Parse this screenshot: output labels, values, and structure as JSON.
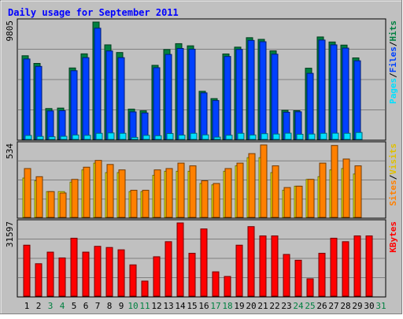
{
  "chart_data": {
    "type": "bar",
    "title": "Daily usage for September 2011",
    "categories": [
      "1",
      "2",
      "3",
      "4",
      "5",
      "6",
      "7",
      "8",
      "9",
      "10",
      "11",
      "12",
      "13",
      "14",
      "15",
      "16",
      "17",
      "18",
      "19",
      "20",
      "21",
      "22",
      "23",
      "24",
      "25",
      "26",
      "27",
      "28",
      "29",
      "30",
      "31"
    ],
    "weekend_days": [
      3,
      4,
      10,
      11,
      17,
      18,
      24,
      25,
      31
    ],
    "panels": [
      {
        "id": "hits-files-pages",
        "max_label": "9805",
        "ymax": 9805,
        "legend": [
          "Pages",
          "/",
          "Files",
          "/",
          "Hits"
        ],
        "series": [
          {
            "name": "Hits",
            "color": "#008040",
            "values": [
              6990,
              6350,
              2580,
              2620,
              5970,
              7150,
              9805,
              7900,
              7260,
              2530,
              2390,
              6190,
              7510,
              8000,
              7820,
              4020,
              3410,
              7140,
              7710,
              8500,
              8360,
              7400,
              2430,
              2400,
              5950,
              8560,
              8140,
              7880,
              6810,
              null,
              null
            ]
          },
          {
            "name": "Files",
            "color": "#0040ff",
            "values": [
              6720,
              6100,
              2380,
              2400,
              5740,
              6830,
              9290,
              7390,
              6830,
              2300,
              2210,
              5990,
              7100,
              7600,
              7540,
              3890,
              3250,
              6930,
              7520,
              8270,
              8160,
              7120,
              2270,
              2310,
              5520,
              8300,
              7900,
              7630,
              6570,
              null,
              null
            ]
          },
          {
            "name": "Pages",
            "color": "#00e0ff",
            "values": [
              330,
              250,
              220,
              260,
              370,
              340,
              510,
              540,
              510,
              170,
              340,
              310,
              490,
              360,
              510,
              380,
              190,
              350,
              510,
              370,
              480,
              450,
              520,
              430,
              450,
              510,
              520,
              510,
              580,
              null,
              null
            ]
          }
        ]
      },
      {
        "id": "visits-sites",
        "max_label": "534",
        "ymax": 534,
        "legend": [
          "Sites",
          "/",
          "Visits"
        ],
        "series": [
          {
            "name": "Visits",
            "color": "#ffff00",
            "values": [
              290,
              270,
              190,
              190,
              260,
              350,
              400,
              330,
              330,
              190,
              190,
              310,
              340,
              340,
              340,
              250,
              240,
              340,
              380,
              440,
              440,
              330,
              200,
              230,
              280,
              300,
              350,
              360,
              320,
              null,
              null
            ]
          },
          {
            "name": "Sites",
            "color": "#ff8000",
            "values": [
              360,
              300,
              190,
              180,
              280,
              370,
              420,
              390,
              350,
              200,
              200,
              350,
              360,
              400,
              380,
              270,
              250,
              360,
              400,
              470,
              534,
              380,
              220,
              230,
              280,
              400,
              530,
              430,
              380,
              null,
              null
            ]
          }
        ]
      },
      {
        "id": "kbytes",
        "max_label": "31597",
        "ymax": 31597,
        "legend": [
          "KBytes"
        ],
        "series": [
          {
            "name": "KBytes",
            "color": "#ff0000",
            "values": [
              22000,
              14000,
              19000,
              16500,
              25000,
              19000,
              21500,
              21000,
              20000,
              13500,
              6500,
              17000,
              23500,
              31597,
              18500,
              29000,
              10500,
              8500,
              22000,
              30000,
              26000,
              26000,
              18000,
              15500,
              7500,
              18500,
              25000,
              23500,
              26000,
              26000,
              null
            ]
          }
        ]
      }
    ]
  }
}
